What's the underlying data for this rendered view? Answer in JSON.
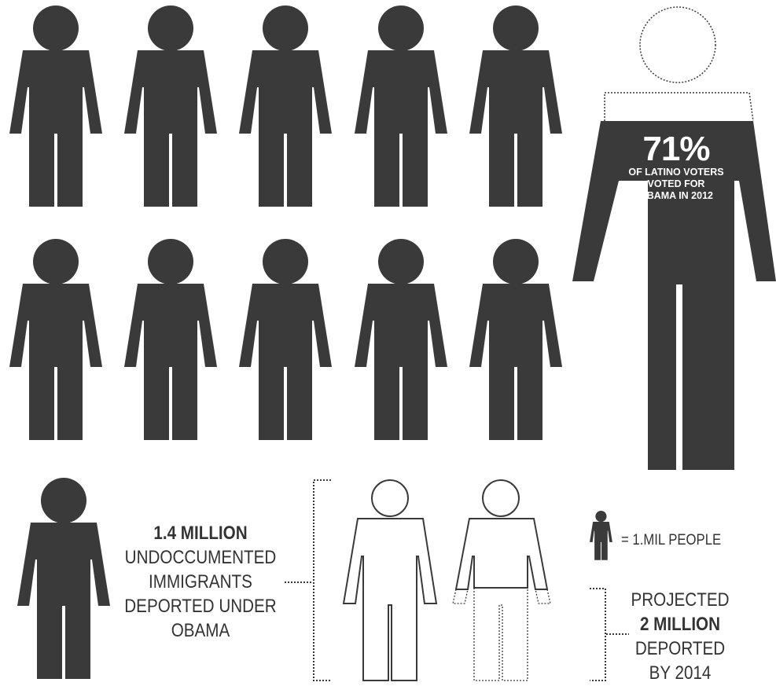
{
  "colors": {
    "figure": "#3a3a3a",
    "text": "#333333",
    "background": "#ffffff",
    "inverse_text": "#ffffff"
  },
  "grid": {
    "rows": 2,
    "columns": 5,
    "figure_icon": "person-figure-icon"
  },
  "latino_stat": {
    "percent": "71%",
    "line1": "OF LATINO VOTERS",
    "line2": "VOTED FOR",
    "line3": "OBAMA IN 2012",
    "fill_fraction": 0.71
  },
  "deported": {
    "amount": "1.4 MILLION",
    "line1": "UNDOCCUMENTED",
    "line2": "IMMIGRANTS",
    "line3": "DEPORTED UNDER",
    "line4": "OBAMA"
  },
  "legend": {
    "text": "= 1.MIL PEOPLE",
    "icon": "person-legend-icon"
  },
  "projected": {
    "line1": "PROJECTED",
    "amount": "2 MILLION",
    "line2": "DEPORTED",
    "line3": "BY 2014"
  }
}
